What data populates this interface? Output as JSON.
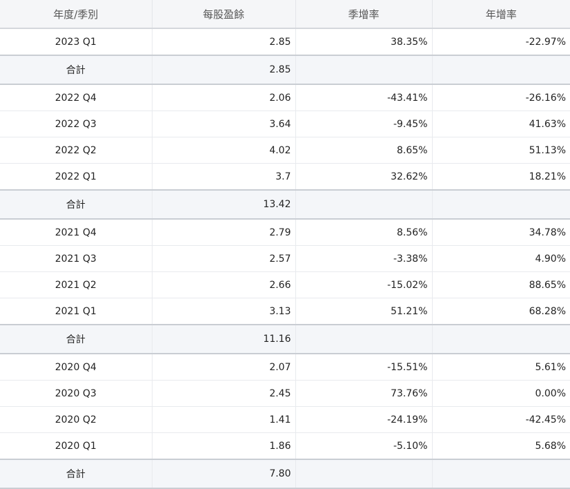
{
  "table": {
    "header": [
      "年度/季別",
      "每股盈餘",
      "季增率",
      "年增率"
    ],
    "rows": [
      [
        "2023 Q1",
        "2.85",
        "38.35%",
        "-22.97%"
      ],
      [
        "合計",
        "2.85"
      ],
      [
        "2022 Q4",
        "2.06",
        "-43.41%",
        "-26.16%"
      ],
      [
        "2022 Q3",
        "3.64",
        "-9.45%",
        "41.63%"
      ],
      [
        "2022 Q2",
        "4.02",
        "8.65%",
        "51.13%"
      ],
      [
        "2022 Q1",
        "3.7",
        "32.62%",
        "18.21%"
      ],
      [
        "合計",
        "13.42"
      ],
      [
        "2021 Q4",
        "2.79",
        "8.56%",
        "34.78%"
      ],
      [
        "2021 Q3",
        "2.57",
        "-3.38%",
        "4.90%"
      ],
      [
        "2021 Q2",
        "2.66",
        "-15.02%",
        "88.65%"
      ],
      [
        "2021 Q1",
        "3.13",
        "51.21%",
        "68.28%"
      ],
      [
        "合計",
        "11.16"
      ],
      [
        "2020 Q4",
        "2.07",
        "-15.51%",
        "5.61%"
      ],
      [
        "2020 Q3",
        "2.45",
        "73.76%",
        "0.00%"
      ],
      [
        "2020 Q2",
        "1.41",
        "-24.19%",
        "-42.45%"
      ],
      [
        "2020 Q1",
        "1.86",
        "-5.10%",
        "5.68%"
      ],
      [
        "合計",
        "7.80"
      ]
    ]
  }
}
